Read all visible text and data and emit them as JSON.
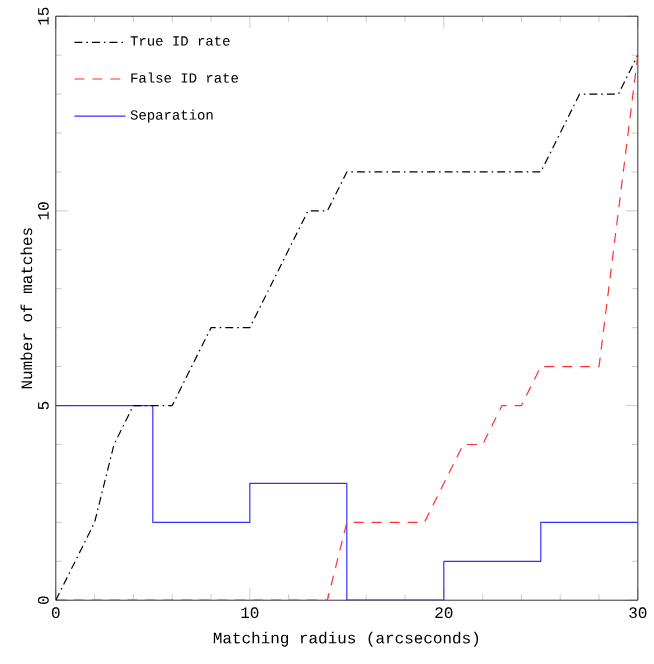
{
  "chart_data": {
    "type": "line",
    "xlabel": "Matching radius (arcseconds)",
    "ylabel": "Number of matches",
    "xlim": [
      0,
      30
    ],
    "ylim": [
      0,
      15
    ],
    "xticks": [
      0,
      10,
      20,
      30
    ],
    "yticks": [
      0,
      5,
      10,
      15
    ],
    "legend": "top left",
    "marker": "none",
    "grid": false,
    "series": [
      {
        "name": "True ID rate",
        "color": "#000000",
        "line_style": "dashdot",
        "x": [
          0,
          1,
          2,
          3,
          4,
          6,
          7,
          8,
          10,
          11,
          12,
          13,
          14,
          15,
          25,
          26,
          27,
          29,
          30
        ],
        "values": [
          0,
          1,
          2,
          4,
          5,
          5,
          6,
          7,
          7,
          8,
          9,
          10,
          10,
          11,
          11,
          12,
          13,
          13,
          14
        ]
      },
      {
        "name": "False ID rate",
        "color": "#ff3030",
        "line_style": "dashed",
        "x": [
          0,
          14,
          15,
          19,
          20,
          21,
          22,
          23,
          24,
          25,
          28,
          29,
          30
        ],
        "values": [
          0,
          0,
          2,
          2,
          3,
          4,
          4,
          5,
          5,
          6,
          6,
          10,
          14
        ]
      },
      {
        "name": "Separation",
        "type": "step",
        "color": "#3030ff",
        "line_style": "solid",
        "x": [
          0,
          5,
          10,
          15,
          20,
          25,
          30
        ],
        "values": [
          5,
          2,
          3,
          0,
          1,
          2,
          2
        ]
      }
    ]
  }
}
